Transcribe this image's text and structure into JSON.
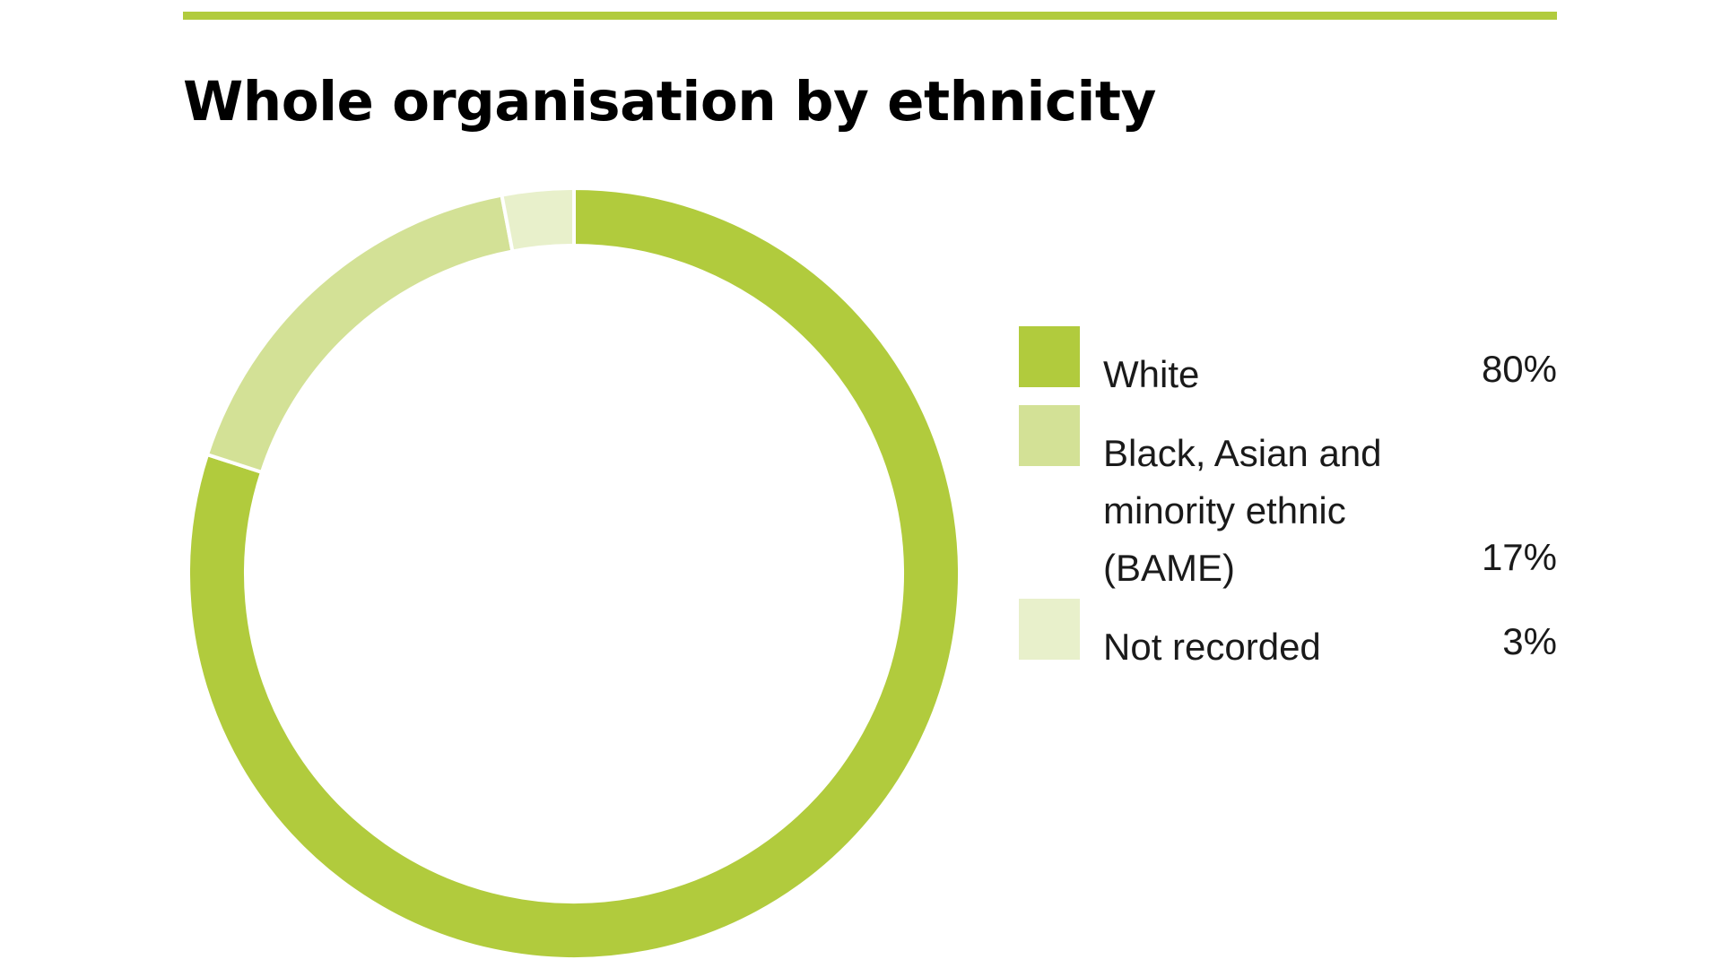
{
  "colors": {
    "accent": "#b1cb3d",
    "bame": "#d3e196",
    "not_recorded": "#e8f0cb",
    "text": "#1a1a1a"
  },
  "chart_data": {
    "type": "pie",
    "title": "Whole organisation by ethnicity",
    "legend_position": "right",
    "series": [
      {
        "name": "White",
        "value": 80,
        "label": "80%",
        "color": "#b1cb3d"
      },
      {
        "name": "Black, Asian and minority ethnic (BAME)",
        "value": 17,
        "label": "17%",
        "color": "#d3e196"
      },
      {
        "name": "Not recorded",
        "value": 3,
        "label": "3%",
        "color": "#e8f0cb"
      }
    ]
  }
}
